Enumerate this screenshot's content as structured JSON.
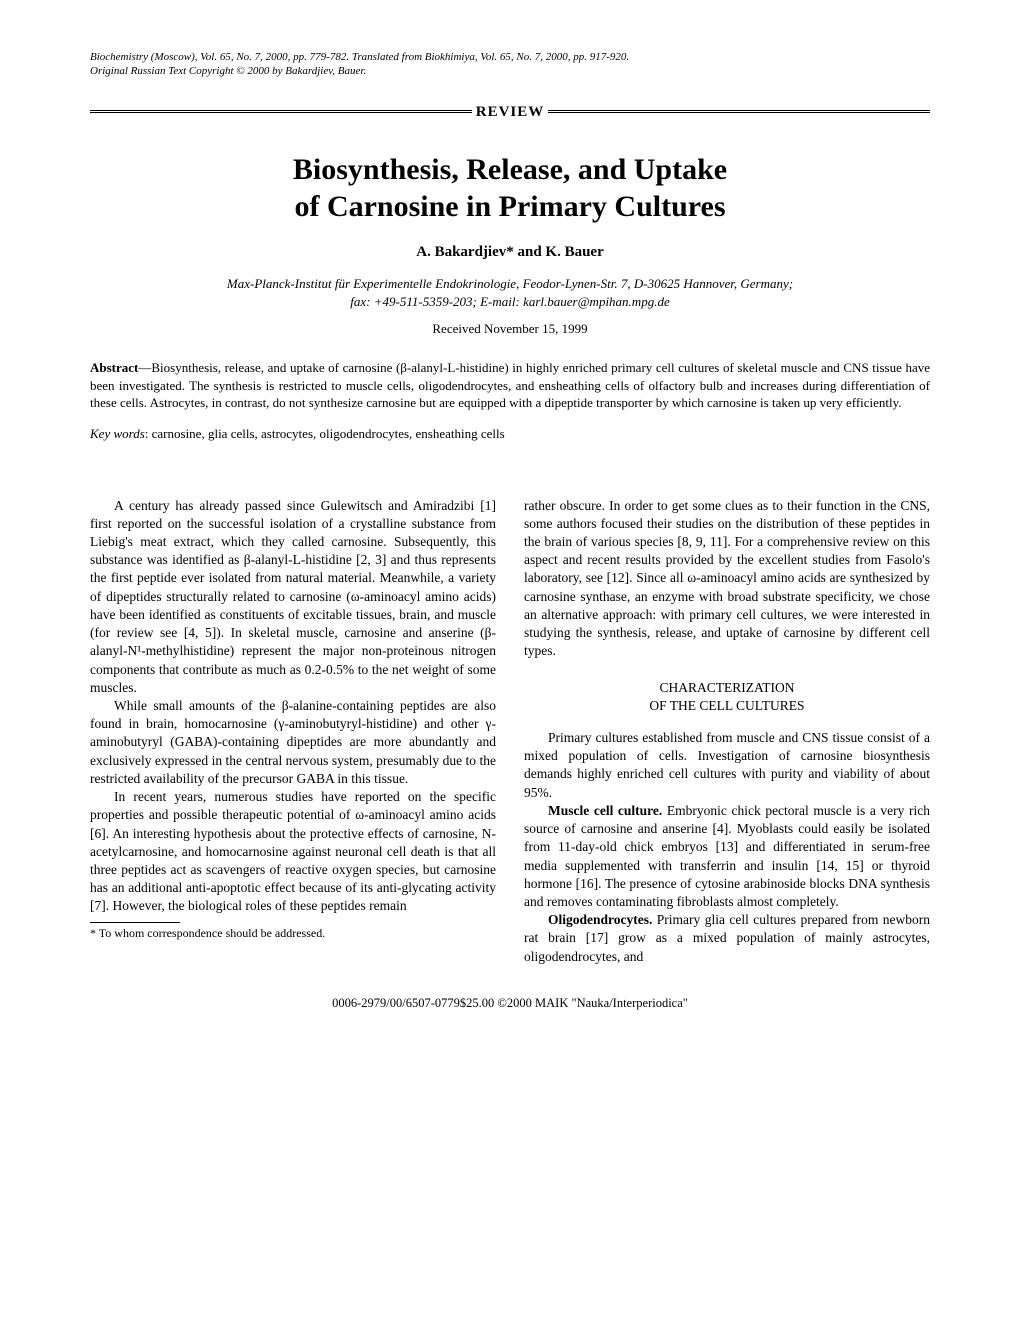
{
  "citation": {
    "line1": "Biochemistry (Moscow), Vol. 65, No. 7, 2000, pp. 779-782. Translated from Biokhimiya, Vol. 65, No. 7, 2000, pp. 917-920.",
    "line2": "Original Russian Text Copyright © 2000 by Bakardjiev, Bauer."
  },
  "review_label": "REVIEW",
  "title": {
    "line1": "Biosynthesis, Release, and Uptake",
    "line2": "of Carnosine in Primary Cultures"
  },
  "authors": "A. Bakardjiev* and K. Bauer",
  "affiliation": {
    "line1": "Max-Planck-Institut für Experimentelle Endokrinologie, Feodor-Lynen-Str. 7, D-30625 Hannover, Germany;",
    "line2": "fax: +49-511-5359-203; E-mail: karl.bauer@mpihan.mpg.de"
  },
  "received": "Received November 15, 1999",
  "abstract_label": "Abstract",
  "abstract_text": "—Biosynthesis, release, and uptake of carnosine (β-alanyl-L-histidine) in highly enriched primary cell cultures of skeletal muscle and CNS tissue have been investigated. The synthesis is restricted to muscle cells, oligodendrocytes, and ensheathing cells of olfactory bulb and increases during differentiation of these cells. Astrocytes, in contrast, do not synthesize carnosine but are equipped with a dipeptide transporter by which carnosine is taken up very efficiently.",
  "keywords_label": "Key words",
  "keywords_text": ": carnosine, glia cells, astrocytes, oligodendrocytes, ensheathing cells",
  "body": {
    "left": {
      "p1": "A century has already passed since Gulewitsch and Amiradzibi [1] first reported on the successful isolation of a crystalline substance from Liebig's meat extract, which they called carnosine. Subsequently, this substance was identified as β-alanyl-L-histidine [2, 3] and thus represents the first peptide ever isolated from natural material. Meanwhile, a variety of dipeptides structurally related to carnosine (ω-aminoacyl amino acids) have been identified as constituents of excitable tissues, brain, and muscle (for review see [4, 5]). In skeletal muscle, carnosine and anserine (β-alanyl-N¹-methylhistidine) represent the major non-proteinous nitrogen components that contribute as much as 0.2-0.5% to the net weight of some muscles.",
      "p2": "While small amounts of the β-alanine-containing peptides are also found in brain, homocarnosine (γ-aminobutyryl-histidine) and other γ-aminobutyryl (GABA)-containing dipeptides are more abundantly and exclusively expressed in the central nervous system, presumably due to the restricted availability of the precursor GABA in this tissue.",
      "p3": "In recent years, numerous studies have reported on the specific properties and possible therapeutic potential of ω-aminoacyl amino acids [6]. An interesting hypothesis about the protective effects of carnosine, N-acetylcarnosine, and homocarnosine against neuronal cell death is that all three peptides act as scavengers of reactive oxygen species, but carnosine has an additional anti-apoptotic effect because of its anti-glycating activity [7]. However, the biological roles of these peptides remain"
    },
    "right": {
      "p1": "rather obscure. In order to get some clues as to their function in the CNS, some authors focused their studies on the distribution of these peptides in the brain of various species [8, 9, 11]. For a comprehensive review on this aspect and recent results provided by the excellent studies from Fasolo's laboratory, see [12]. Since all ω-aminoacyl amino acids are synthesized by carnosine synthase, an enzyme with broad substrate specificity, we chose an alternative approach: with primary cell cultures, we were interested in studying the synthesis, release, and uptake of carnosine by different cell types.",
      "section_heading": "CHARACTERIZATION\nOF THE CELL CULTURES",
      "p2": "Primary cultures established from muscle and CNS tissue consist of a mixed population of cells. Investigation of carnosine biosynthesis demands highly enriched cell cultures with purity and viability of about 95%.",
      "p3_label": "Muscle cell culture.",
      "p3": " Embryonic chick pectoral muscle is a very rich source of carnosine and anserine [4]. Myoblasts could easily be isolated from 11-day-old chick embryos [13] and differentiated in serum-free media supplemented with transferrin and insulin [14, 15] or thyroid hormone [16]. The presence of cytosine arabinoside blocks DNA synthesis and removes contaminating fibroblasts almost completely.",
      "p4_label": "Oligodendrocytes.",
      "p4": " Primary glia cell cultures prepared from newborn rat brain [17] grow as a mixed population of mainly astrocytes, oligodendrocytes, and"
    }
  },
  "footnote": "* To whom correspondence should be addressed.",
  "footer": "0006-2979/00/6507-0779$25.00 ©2000 MAIK \"Nauka/Interperiodica\""
}
